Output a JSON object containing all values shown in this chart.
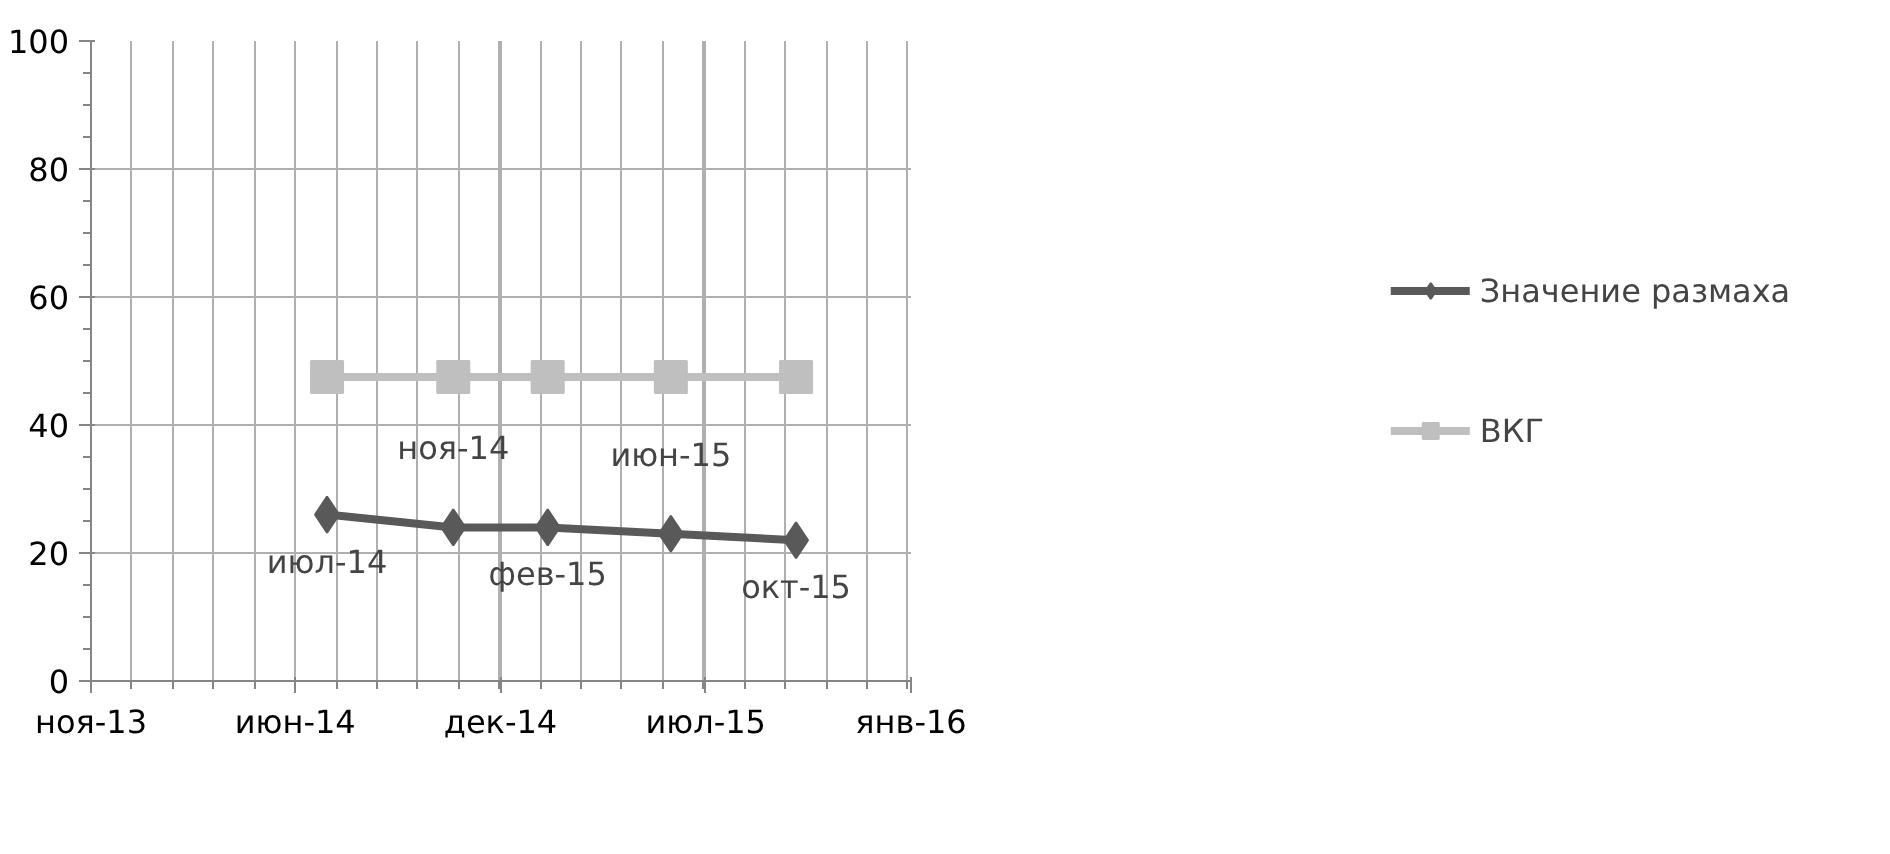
{
  "chart_data": {
    "type": "line",
    "x": [
      "2014-07-01",
      "2014-11-01",
      "2015-02-01",
      "2015-06-01",
      "2015-10-01"
    ],
    "series": [
      {
        "name": "Значение размаха",
        "color": "#595959",
        "values": [
          26,
          24,
          24,
          23,
          22
        ],
        "marker": "diamond"
      },
      {
        "name": "ВКГ",
        "color": "#bfbfbf",
        "values": [
          47.5,
          47.5,
          47.5,
          47.5,
          47.5
        ],
        "marker": "square"
      }
    ],
    "xlim": [
      "2013-11-13",
      "2016-01-21"
    ],
    "xticks": [
      {
        "value": "2013-11-13",
        "label": "ноя-13"
      },
      {
        "value": "2014-05-31",
        "label": "июн-14"
      },
      {
        "value": "2014-12-17",
        "label": "дек-14"
      },
      {
        "value": "2015-07-05",
        "label": "июл-15"
      },
      {
        "value": "2016-01-21",
        "label": "янв-16"
      }
    ],
    "ylim": [
      0,
      100
    ],
    "yticks": [
      0,
      20,
      40,
      60,
      80,
      100
    ],
    "annotations": [
      {
        "text": "июл-14",
        "x": "2014-07-01",
        "y": 26
      },
      {
        "text": "ноя-14",
        "x": "2014-11-01",
        "y": 24
      },
      {
        "text": "фев-15",
        "x": "2015-02-01",
        "y": 24
      },
      {
        "text": "июн-15",
        "x": "2015-06-01",
        "y": 23
      },
      {
        "text": "окт-15",
        "x": "2015-10-01",
        "y": 22
      }
    ],
    "grid": true,
    "legend": "right",
    "line_style": "solid"
  }
}
